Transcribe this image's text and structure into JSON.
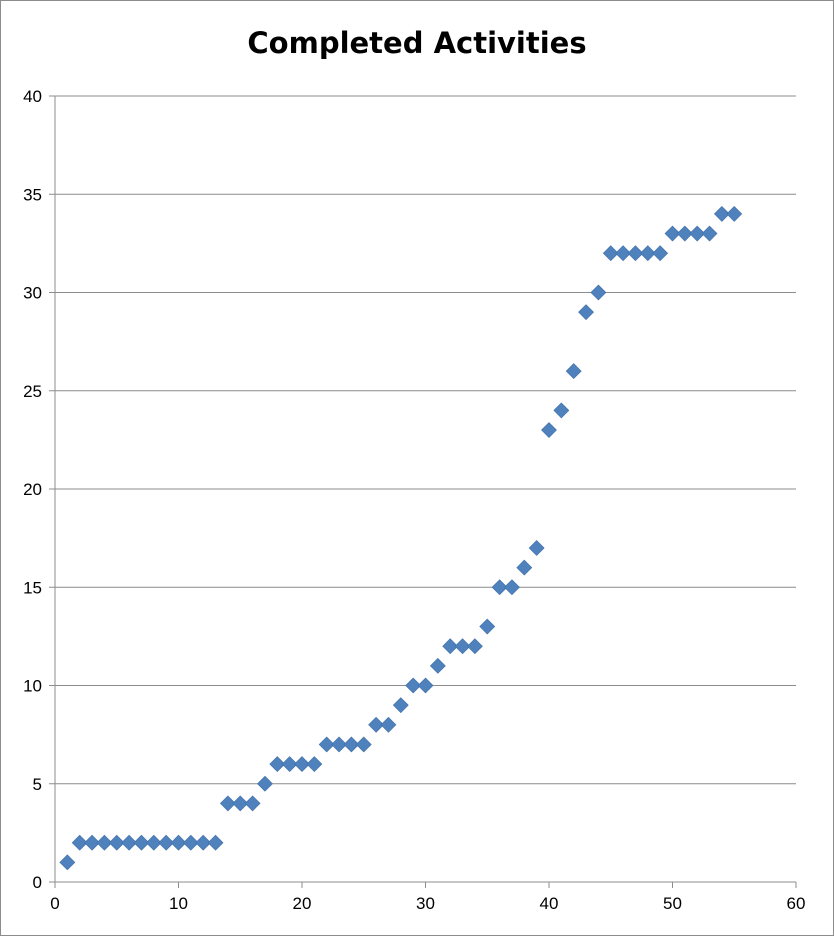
{
  "chart_data": {
    "type": "scatter",
    "title": "Completed Activities",
    "xlabel": "",
    "ylabel": "",
    "xlim": [
      0,
      60
    ],
    "ylim": [
      0,
      40
    ],
    "x_ticks": [
      0,
      10,
      20,
      30,
      40,
      50,
      60
    ],
    "y_ticks": [
      0,
      5,
      10,
      15,
      20,
      25,
      30,
      35,
      40
    ],
    "grid": "horizontal",
    "legend": "none",
    "marker": "diamond",
    "color": "#4f81bd",
    "series": [
      {
        "x": [
          1,
          2,
          3,
          4,
          5,
          6,
          7,
          8,
          9,
          10,
          11,
          12,
          13,
          14,
          15,
          16,
          17,
          18,
          19,
          20,
          21,
          22,
          23,
          24,
          25,
          26,
          27,
          28,
          29,
          30,
          31,
          32,
          33,
          34,
          35,
          36,
          37,
          38,
          39,
          40,
          41,
          42,
          43,
          44,
          45,
          46,
          47,
          48,
          49,
          50,
          51,
          52,
          53,
          54,
          55
        ],
        "y": [
          1,
          2,
          2,
          2,
          2,
          2,
          2,
          2,
          2,
          2,
          2,
          2,
          2,
          4,
          4,
          4,
          5,
          6,
          6,
          6,
          6,
          7,
          7,
          7,
          7,
          8,
          8,
          9,
          10,
          10,
          11,
          12,
          12,
          12,
          13,
          15,
          15,
          16,
          17,
          23,
          24,
          26,
          29,
          30,
          32,
          32,
          32,
          32,
          32,
          33,
          33,
          33,
          33,
          34,
          34
        ]
      }
    ]
  }
}
